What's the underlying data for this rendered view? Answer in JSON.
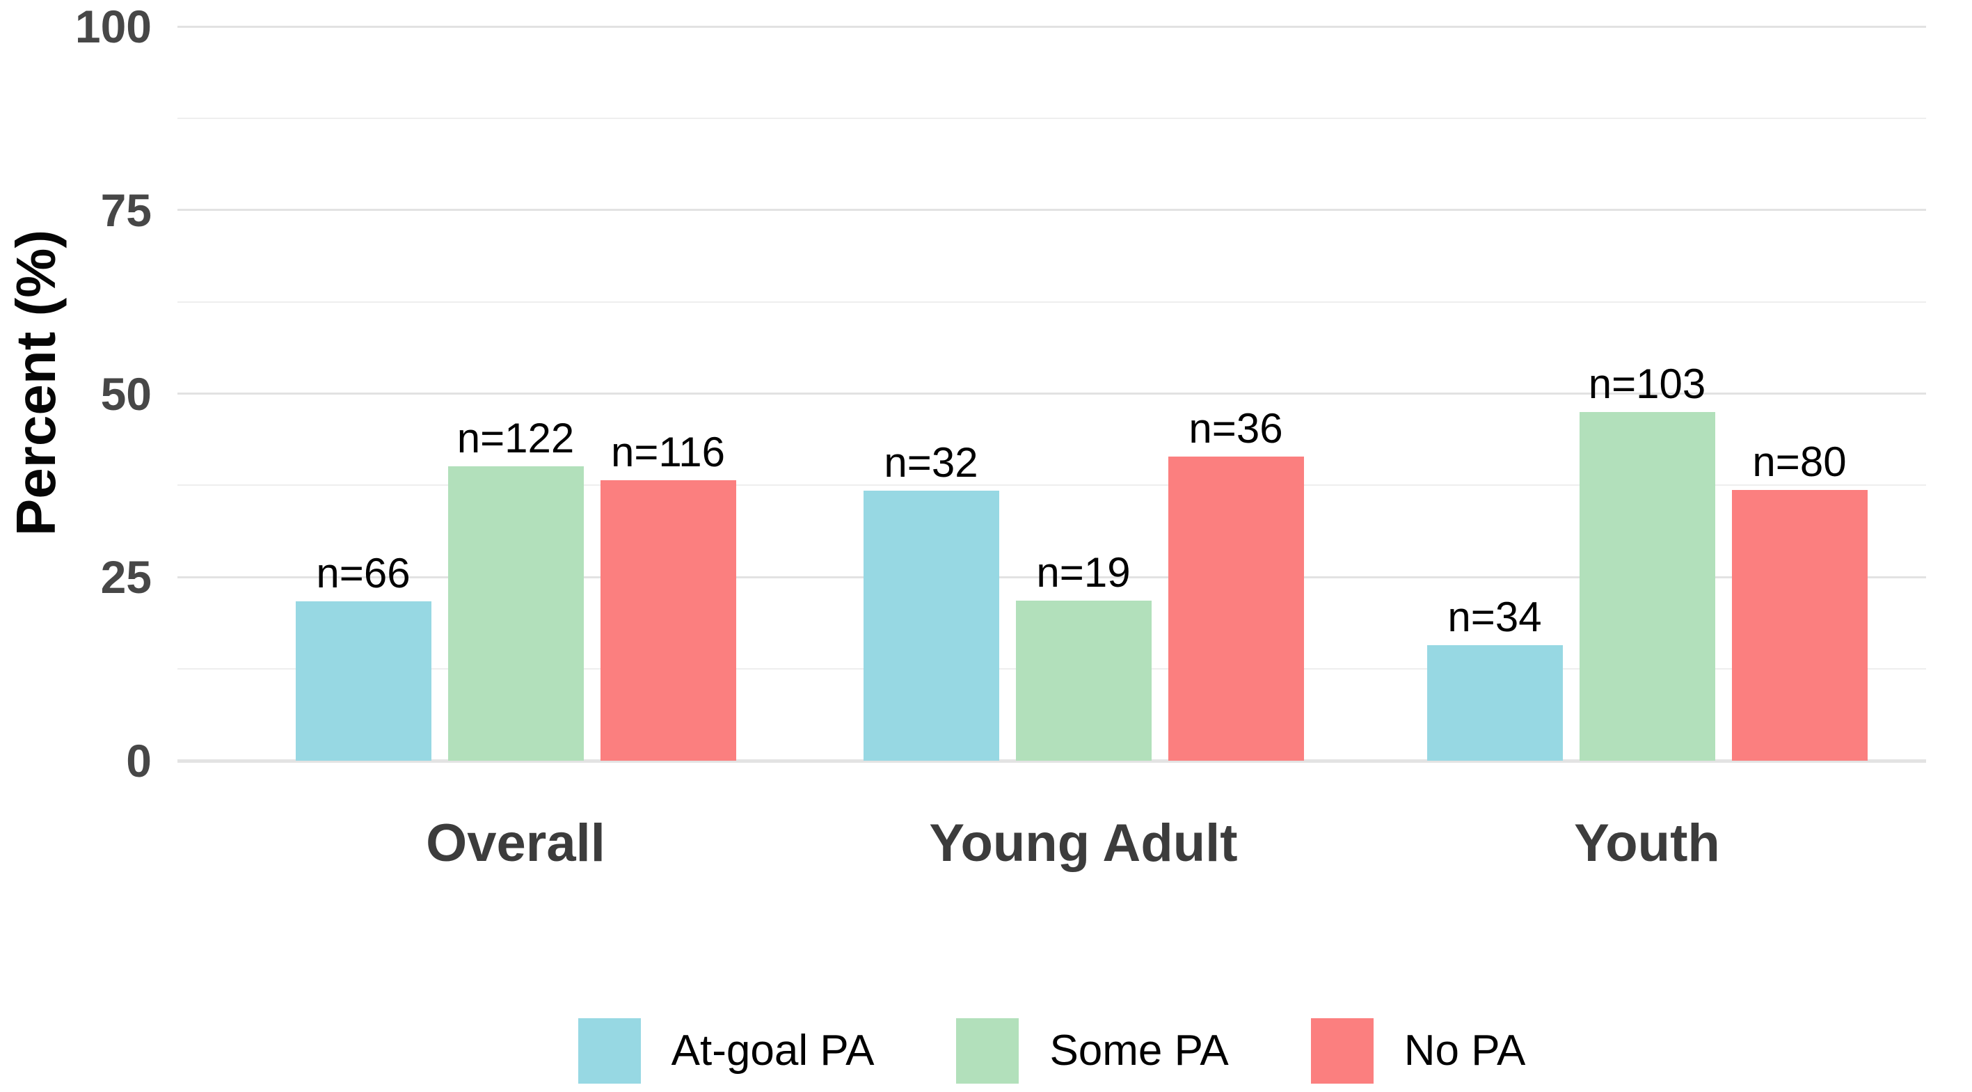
{
  "chart_data": {
    "type": "bar",
    "title": "",
    "xlabel": "",
    "ylabel": "Percent (%)",
    "ylim": [
      0,
      100
    ],
    "y_ticks": [
      0,
      25,
      50,
      75,
      100
    ],
    "y_minor_ticks": [
      12.5,
      37.5,
      62.5,
      87.5
    ],
    "grid": "horizontal, major and minor, light gray on white",
    "legend_position": "bottom-center",
    "categories": [
      "Overall",
      "Young Adult",
      "Youth"
    ],
    "series": [
      {
        "name": "At-goal PA",
        "color": "#97d8e3",
        "values": [
          21.7,
          36.8,
          15.7
        ],
        "counts": [
          66,
          32,
          34
        ],
        "bar_labels": [
          "n=66",
          "n=32",
          "n=34"
        ]
      },
      {
        "name": "Some PA",
        "color": "#b2e0bb",
        "values": [
          40.1,
          21.8,
          47.5
        ],
        "counts": [
          122,
          19,
          103
        ],
        "bar_labels": [
          "n=122",
          "n=19",
          "n=103"
        ]
      },
      {
        "name": "No PA",
        "color": "#fb7f7f",
        "values": [
          38.2,
          41.4,
          36.9
        ],
        "counts": [
          116,
          36,
          80
        ],
        "bar_labels": [
          "n=116",
          "n=36",
          "n=80"
        ]
      }
    ]
  },
  "colors": {
    "background": "#ffffff",
    "grid_major": "#e2e2e2",
    "grid_minor": "#eeeeee",
    "axis_baseline": "#e3e3e3",
    "tick_text": "#474747",
    "category_text": "#3c3c3c",
    "bar_label_text": "#000000",
    "legend_text": "#000000",
    "axis_title_text": "#060606"
  }
}
